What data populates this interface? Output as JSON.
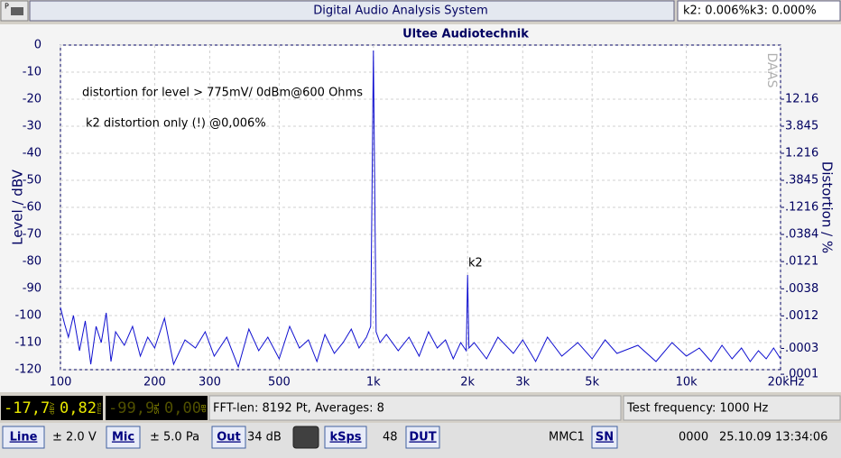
{
  "window": {
    "icon_label": "P",
    "title": "Digital Audio Analysis System",
    "readout": "k2: 0.006%k3: 0.000%"
  },
  "chart_data": {
    "type": "line",
    "title": "Ultee Audiotechnik",
    "y_label": "Level / dBV",
    "y2_label": "Distortion / %",
    "watermark": "DAAS",
    "annotations": [
      "distortion for level > 775mV/ 0dBm@600 Ohms",
      "k2 distortion only (!) @0,006%",
      "k2"
    ],
    "x": [
      100,
      103,
      106,
      110,
      115,
      120,
      125,
      130,
      135,
      140,
      145,
      150,
      160,
      170,
      180,
      190,
      200,
      215,
      230,
      250,
      270,
      290,
      310,
      340,
      370,
      400,
      430,
      460,
      500,
      540,
      580,
      620,
      660,
      700,
      750,
      800,
      850,
      900,
      950,
      980,
      1000,
      1020,
      1050,
      1100,
      1200,
      1300,
      1400,
      1500,
      1600,
      1700,
      1800,
      1900,
      1980,
      2000,
      2020,
      2100,
      2300,
      2500,
      2800,
      3000,
      3300,
      3600,
      4000,
      4500,
      5000,
      5500,
      6000,
      7000,
      8000,
      9000,
      10000,
      11000,
      12000,
      13000,
      14000,
      15000,
      16000,
      17000,
      18000,
      19000,
      20000
    ],
    "series": [
      {
        "color": "#1010d0",
        "values": [
          -97,
          -103,
          -108,
          -100,
          -113,
          -102,
          -118,
          -104,
          -110,
          -99,
          -117,
          -106,
          -111,
          -104,
          -115,
          -108,
          -112,
          -101,
          -118,
          -109,
          -112,
          -106,
          -115,
          -108,
          -119,
          -105,
          -113,
          -108,
          -116,
          -104,
          -112,
          -109,
          -117,
          -107,
          -114,
          -110,
          -105,
          -112,
          -108,
          -104,
          -2,
          -106,
          -110,
          -107,
          -113,
          -108,
          -115,
          -106,
          -112,
          -109,
          -116,
          -110,
          -113,
          -85,
          -112,
          -110,
          -116,
          -108,
          -114,
          -109,
          -117,
          -108,
          -115,
          -110,
          -116,
          -109,
          -114,
          -111,
          -117,
          -110,
          -115,
          -112,
          -117,
          -111,
          -116,
          -112,
          -117,
          -113,
          -116,
          -112,
          -116
        ]
      }
    ],
    "xlim": [
      100,
      20000
    ],
    "xlog": true,
    "xticks": [
      100,
      200,
      300,
      500,
      {
        "value": 1000,
        "label": "1k"
      },
      {
        "value": 2000,
        "label": "2k"
      },
      {
        "value": 3000,
        "label": "3k"
      },
      {
        "value": 5000,
        "label": "5k"
      },
      {
        "value": 10000,
        "label": "10k"
      },
      {
        "value": 20000,
        "label": "20kHz"
      }
    ],
    "ylim": [
      -120,
      0
    ],
    "yticks": [
      0,
      -10,
      -20,
      -30,
      -40,
      -50,
      -60,
      -70,
      -80,
      -90,
      -100,
      -110,
      -120
    ],
    "y2lim": [
      0.0001216,
      121.6
    ],
    "y2log": true,
    "y2ticks": [
      12.16,
      3.845,
      1.216,
      {
        "value": 0.3845,
        "label": ".3845"
      },
      {
        "value": 0.1216,
        "label": ".1216"
      },
      {
        "value": 0.0384,
        "label": ".0384"
      },
      {
        "value": 0.0121,
        "label": ".0121"
      },
      {
        "value": 0.0038,
        "label": ".0038"
      },
      {
        "value": 0.0012,
        "label": ".0012"
      },
      {
        "value": 0.0003,
        "label": ".0003"
      },
      {
        "value": 0.0001,
        "label": ".0001"
      }
    ],
    "grid": true
  },
  "meters": [
    {
      "value": "-17,7",
      "unit": "dBV",
      "value2": "0,82",
      "unit2": "rms"
    },
    {
      "value": "-99,9",
      "unit": "SPL",
      "value2": "0,00",
      "unit2": "dB"
    }
  ],
  "status": {
    "fft": "FFT-len: 8192 Pt, Averages: 8",
    "test_frequency": "Test frequency: 1000 Hz"
  },
  "toolbar": [
    {
      "text": "Line",
      "button": true
    },
    {
      "text": "± 2.0 V",
      "button": false
    },
    {
      "text": "Mic",
      "button": true
    },
    {
      "text": "± 5.0 Pa",
      "button": false
    },
    {
      "text": "Out",
      "button": true
    },
    {
      "text": "34 dB",
      "button": false
    },
    {
      "text": "kSps",
      "button": true
    },
    {
      "text": "48",
      "button": false
    },
    {
      "text": "DUT",
      "button": true
    },
    {
      "text": "MMC1",
      "button": false
    },
    {
      "text": "SN",
      "button": true
    },
    {
      "text": "0000",
      "button": false
    },
    {
      "text": "25.10.09 13:34:06",
      "button": false
    }
  ]
}
